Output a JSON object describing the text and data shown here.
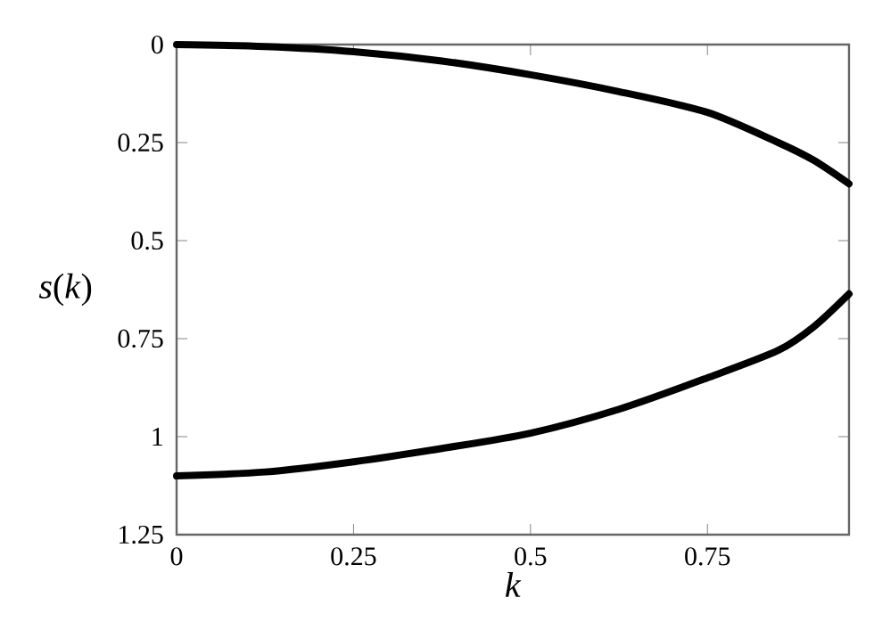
{
  "chart_data": {
    "type": "line",
    "xlabel": "*k*",
    "ylabel": "*s*(*k*)",
    "xlim": [
      0,
      0.95
    ],
    "ylim": [
      1.25,
      0
    ],
    "xticks": [
      0,
      0.25,
      0.5,
      0.75
    ],
    "yticks": [
      0,
      0.25,
      0.5,
      0.75,
      1,
      1.25
    ],
    "grid": false,
    "marker": "none",
    "line_style": "solid",
    "series": [
      {
        "color": "#000000",
        "x": [
          0,
          0.125,
          0.25,
          0.375,
          0.5,
          0.625,
          0.75,
          0.85,
          0.9,
          0.95
        ],
        "values": [
          0,
          0.005,
          0.018,
          0.042,
          0.077,
          0.12,
          0.173,
          0.25,
          0.295,
          0.355
        ]
      },
      {
        "color": "#000000",
        "x": [
          0,
          0.125,
          0.25,
          0.375,
          0.5,
          0.625,
          0.75,
          0.85,
          0.9,
          0.95
        ],
        "values": [
          1.1,
          1.09,
          1.064,
          1.03,
          0.991,
          0.93,
          0.85,
          0.78,
          0.72,
          0.636
        ]
      }
    ]
  }
}
